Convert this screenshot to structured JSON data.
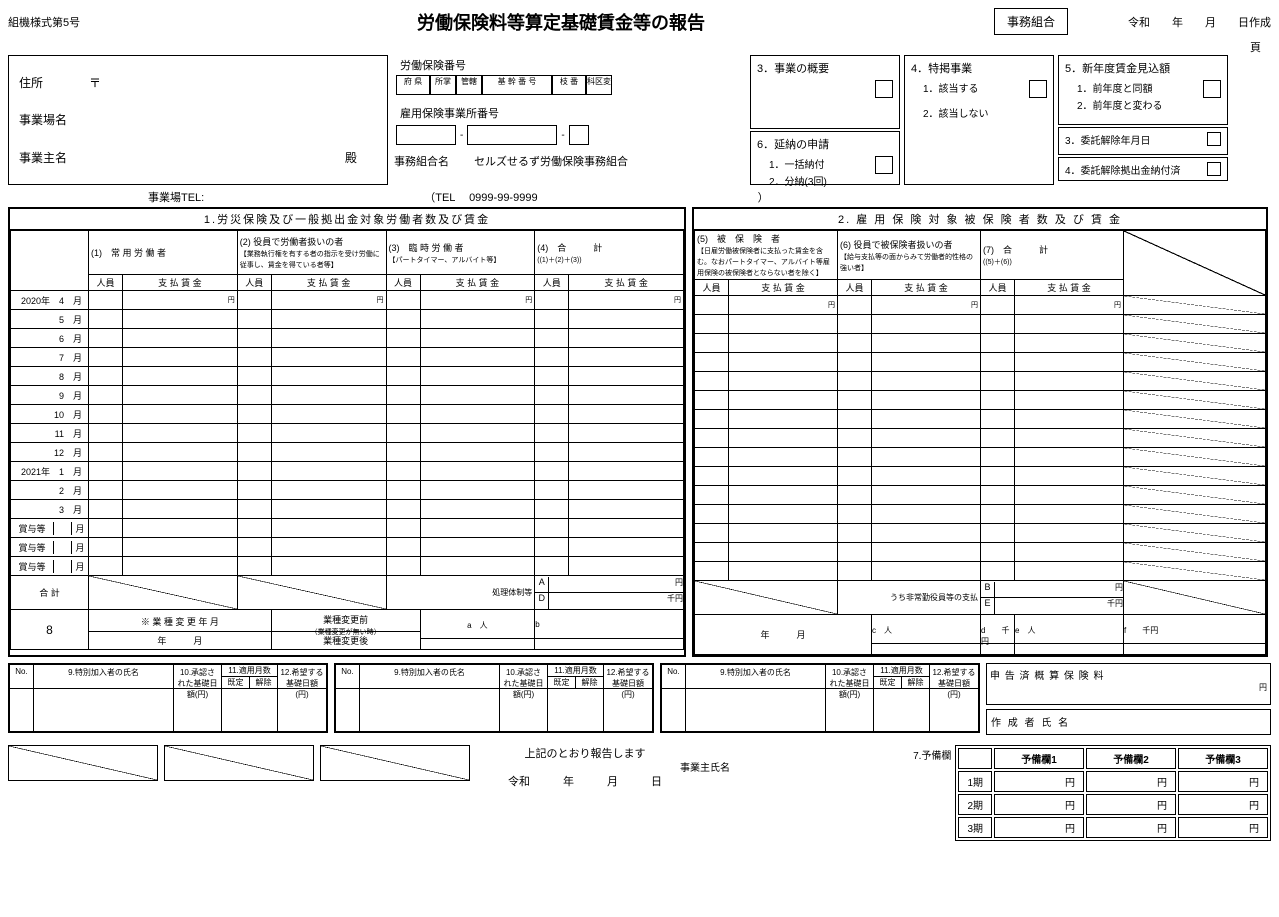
{
  "form_number": "組機様式第5号",
  "title": "労働保険料等算定基礎賃金等の報告",
  "jimu_kumiai": "事務組合",
  "date_prefix": "令和　　年　　月　　日作成",
  "page_label": "頁",
  "address": {
    "label": "住所",
    "postal": "〒",
    "office_label": "事業場名",
    "owner_label": "事業主名",
    "suffix": "殿"
  },
  "insurance_number": {
    "label": "労働保険番号",
    "headers": [
      "府 県",
      "所掌",
      "管轄",
      "基 幹 番 号",
      "枝 番",
      "科区変"
    ],
    "emp_label": "雇用保険事業所番号",
    "union_label": "事務組合名",
    "union_name": "セルズせるず労働保険事務組合"
  },
  "panels": {
    "p3": {
      "title": "3．事業の概要"
    },
    "p4": {
      "title": "4．特掲事業",
      "opt1": "1．該当する",
      "opt2": "2．該当しない"
    },
    "p5": {
      "title": "5．新年度賃金見込額",
      "opt1": "1．前年度と同額",
      "opt2": "2．前年度と変わる"
    },
    "p6": {
      "title": "6．延納の申請",
      "opt1": "1．一括納付",
      "opt2": "2．分納(3回)"
    },
    "p7a": {
      "title": "3．委託解除年月日"
    },
    "p7b": {
      "title": "4．委託解除拠出金納付済"
    }
  },
  "tel": {
    "office_label": "事業場TEL:",
    "paren_label": "（TEL",
    "number": "0999-99-9999",
    "close": "）"
  },
  "table1": {
    "title": "1.労災保険及び一般拠出金対象労働者数及び賃金",
    "col1": "(1)　常 用 労 働 者",
    "col2": "(2) 役員で労働者扱いの者",
    "col2_note": "【業務執行権を有する者の指示を受け労働に従事し、賃金を得ている者等】",
    "col3": "(3)　臨 時 労 働 者",
    "col3_note": "【パートタイマー、アルバイト等】",
    "col4": "(4)　合　　　計",
    "col4_note": "((1)＋(2)＋(3))",
    "sub_person": "人員",
    "sub_wage": "支 払 賃 金"
  },
  "table2": {
    "title": "2. 雇 用 保 険 対 象 被 保 険 者 数 及 び 賃 金",
    "col5": "(5)　被　保　険　者",
    "col5_note": "【日雇労働被保険者に支払った賃金を含む。なおパートタイマー、アルバイト等雇用保険の被保険者とならない者を除く】",
    "col6": "(6) 役員で被保険者扱いの者",
    "col6_note": "【給与支払等の面からみて労働者的性格の強い者】",
    "col7": "(7)　合　　　計",
    "col7_note": "((5)＋(6))"
  },
  "months": [
    "2020年　4　月",
    "5　月",
    "6　月",
    "7　月",
    "8　月",
    "9　月",
    "10　月",
    "11　月",
    "12　月",
    "2021年　1　月",
    "2　月",
    "3　月"
  ],
  "bonus_label": "賞与等",
  "bonus_month": "月",
  "total_label": "合 計",
  "sec8_num": "8",
  "change": {
    "label": "※ 業 種 変 更 年 月",
    "year_month": "年　　　月",
    "before": "業種変更前",
    "before_note": "（業種変更が無い時）",
    "after": "業種変更後",
    "ym2": "年　　　月"
  },
  "markers": {
    "a": "A",
    "d": "D",
    "b": "B",
    "e": "E",
    "yen": "円",
    "thousand": "千円",
    "person": "人",
    "abc": [
      "a",
      "b",
      "c",
      "d",
      "e"
    ],
    "sen": "千"
  },
  "special": {
    "no": "No.",
    "name": "9.特別加入者の氏名",
    "col10": "10.承認された基礎日額(円)",
    "col11": "11.適用月数",
    "col11a": "既定",
    "col11b": "解除",
    "col12": "12.希望する基礎日額(円)",
    "declared": "申 告 済 概 算 保 険 料",
    "author": "作 成 者 氏 名"
  },
  "bottom": {
    "report": "上記のとおり報告します",
    "reiwa": "令和　　　年　　　月　　　日",
    "owner": "事業主氏名",
    "yobi_label": "7.予備欄",
    "yobi_cols": [
      "予備欄1",
      "予備欄2",
      "予備欄3"
    ],
    "periods": [
      "1期",
      "2期",
      "3期"
    ]
  }
}
